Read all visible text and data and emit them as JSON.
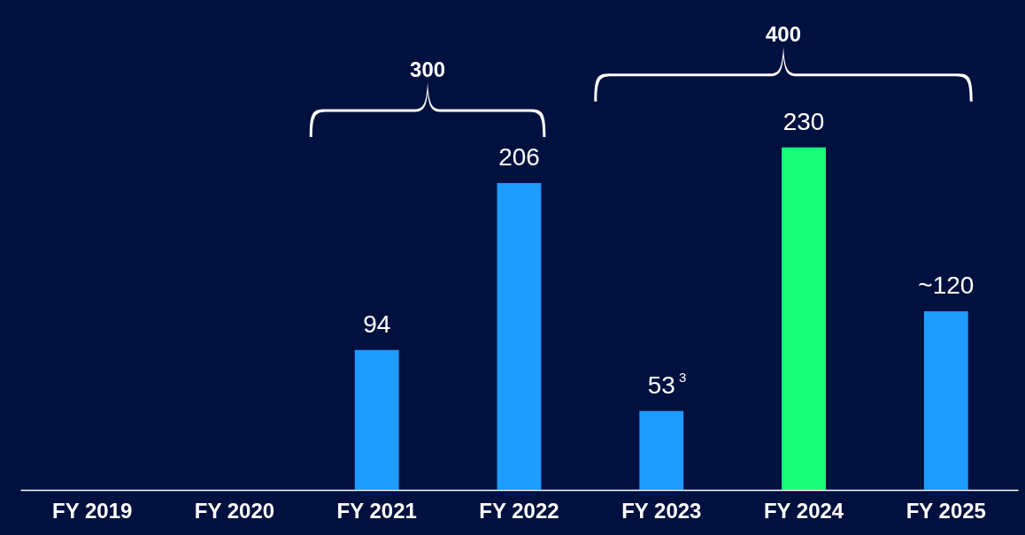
{
  "chart_data": {
    "type": "bar",
    "categories": [
      "FY 2019",
      "FY 2020",
      "FY 2021",
      "FY 2022",
      "FY 2023",
      "FY 2024",
      "FY 2025"
    ],
    "values": [
      null,
      null,
      94,
      206,
      53,
      230,
      120
    ],
    "colors": [
      "#1e9bff",
      "#1e9bff",
      "#1e9bff",
      "#1e9bff",
      "#1e9bff",
      "#1aff7a",
      "#1e9bff"
    ],
    "value_labels": [
      null,
      null,
      "94",
      "206",
      "53$^{3}$",
      "230",
      "~120"
    ],
    "ylim": [
      0,
      329
    ],
    "annotations": [
      "300",
      "400"
    ],
    "tick_labels": "x",
    "grid": false
  }
}
